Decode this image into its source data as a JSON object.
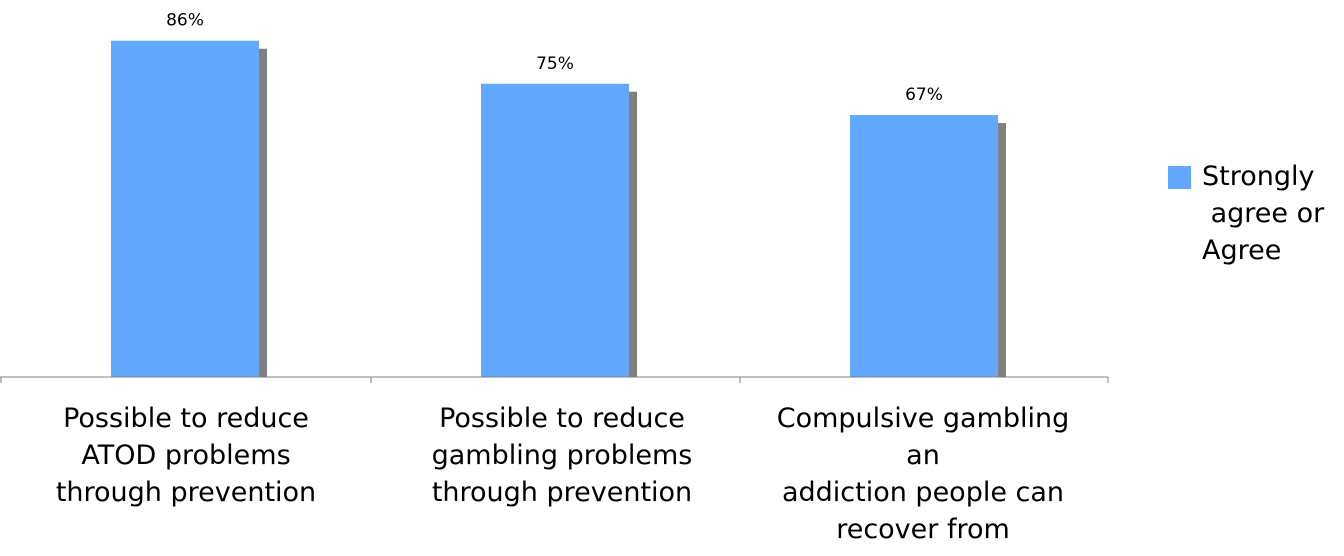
{
  "chart_data": {
    "type": "bar",
    "categories": [
      "Possible to reduce\nATOD problems\nthrough prevention",
      "Possible to reduce\ngambling problems\nthrough prevention",
      "Compulsive gambling\nan\naddiction people can\nrecover from"
    ],
    "series": [
      {
        "name": "Strongly\n agree or\nAgree",
        "values": [
          86,
          75,
          67
        ]
      }
    ],
    "data_labels": [
      "86%",
      "75%",
      "67%"
    ],
    "ylim": [
      0,
      100
    ],
    "grid": false,
    "legend_position": "right",
    "colors": {
      "bar": "#62A8FF",
      "shadow": "#808080",
      "axis": "#808080"
    }
  }
}
